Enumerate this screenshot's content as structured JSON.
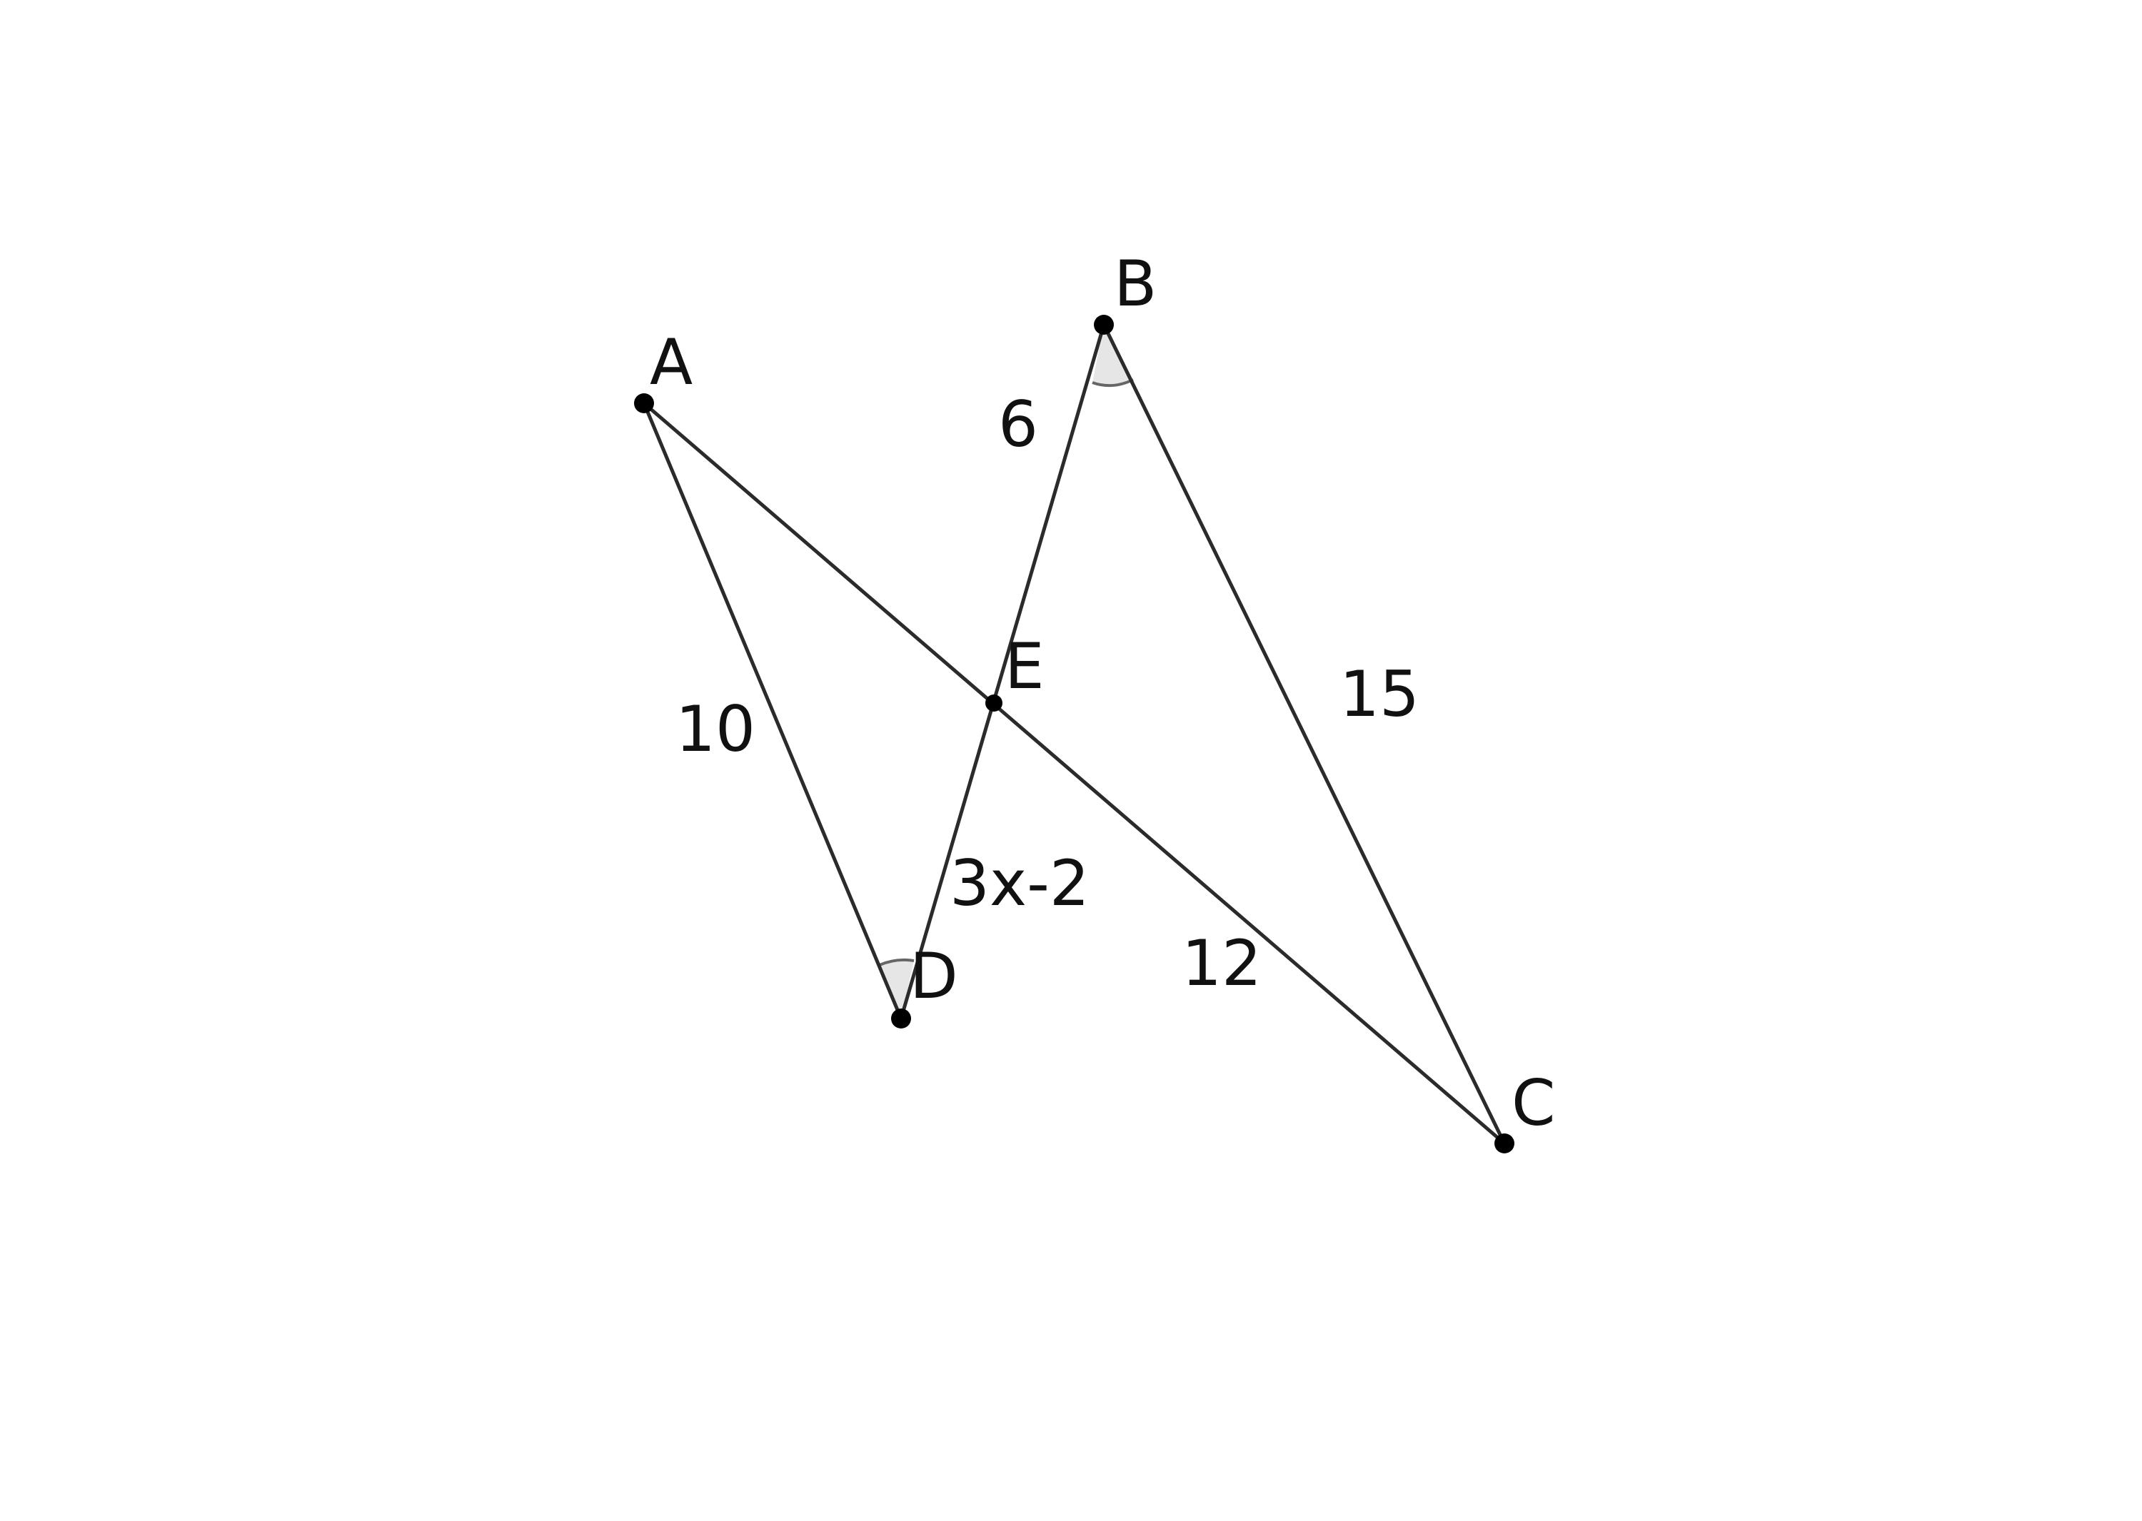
{
  "points": {
    "A": {
      "label": "A"
    },
    "B": {
      "label": "B"
    },
    "C": {
      "label": "C"
    },
    "D": {
      "label": "D"
    },
    "E": {
      "label": "E"
    }
  },
  "measurements": {
    "AD": "10",
    "BE": "6",
    "BC": "15",
    "ED": "3x-2",
    "EC": "12"
  },
  "colors": {
    "line": "#2b2b2b",
    "angle_fill": "#e6e6e6",
    "angle_arc": "#666666",
    "point": "#000000"
  }
}
